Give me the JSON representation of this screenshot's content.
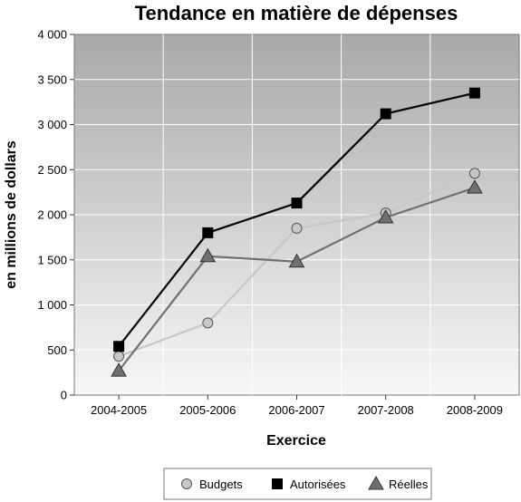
{
  "chart_data": {
    "type": "line",
    "title": "Tendance en matière de dépenses",
    "xlabel": "Exercice",
    "ylabel": "en millions de dollars",
    "categories": [
      "2004-2005",
      "2005-2006",
      "2006-2007",
      "2007-2008",
      "2008-2009"
    ],
    "ylim": [
      0,
      4000
    ],
    "yticks": [
      0,
      500,
      1000,
      1500,
      2000,
      2500,
      3000,
      3500,
      4000
    ],
    "ytick_labels": [
      "0",
      "500",
      "1 000",
      "1 500",
      "2 000",
      "2 500",
      "3 000",
      "3 500",
      "4 000"
    ],
    "grid": true,
    "legend_position": "bottom",
    "series": [
      {
        "name": "Budgets",
        "values": [
          430,
          800,
          1850,
          2020,
          2460
        ],
        "color": "#c8c8c8",
        "marker": "circle"
      },
      {
        "name": "Autorisées",
        "values": [
          540,
          1800,
          2130,
          3120,
          3350
        ],
        "color": "#000000",
        "marker": "square"
      },
      {
        "name": "Réelles",
        "values": [
          270,
          1540,
          1480,
          1970,
          2300
        ],
        "color": "#707070",
        "marker": "triangle"
      }
    ]
  }
}
